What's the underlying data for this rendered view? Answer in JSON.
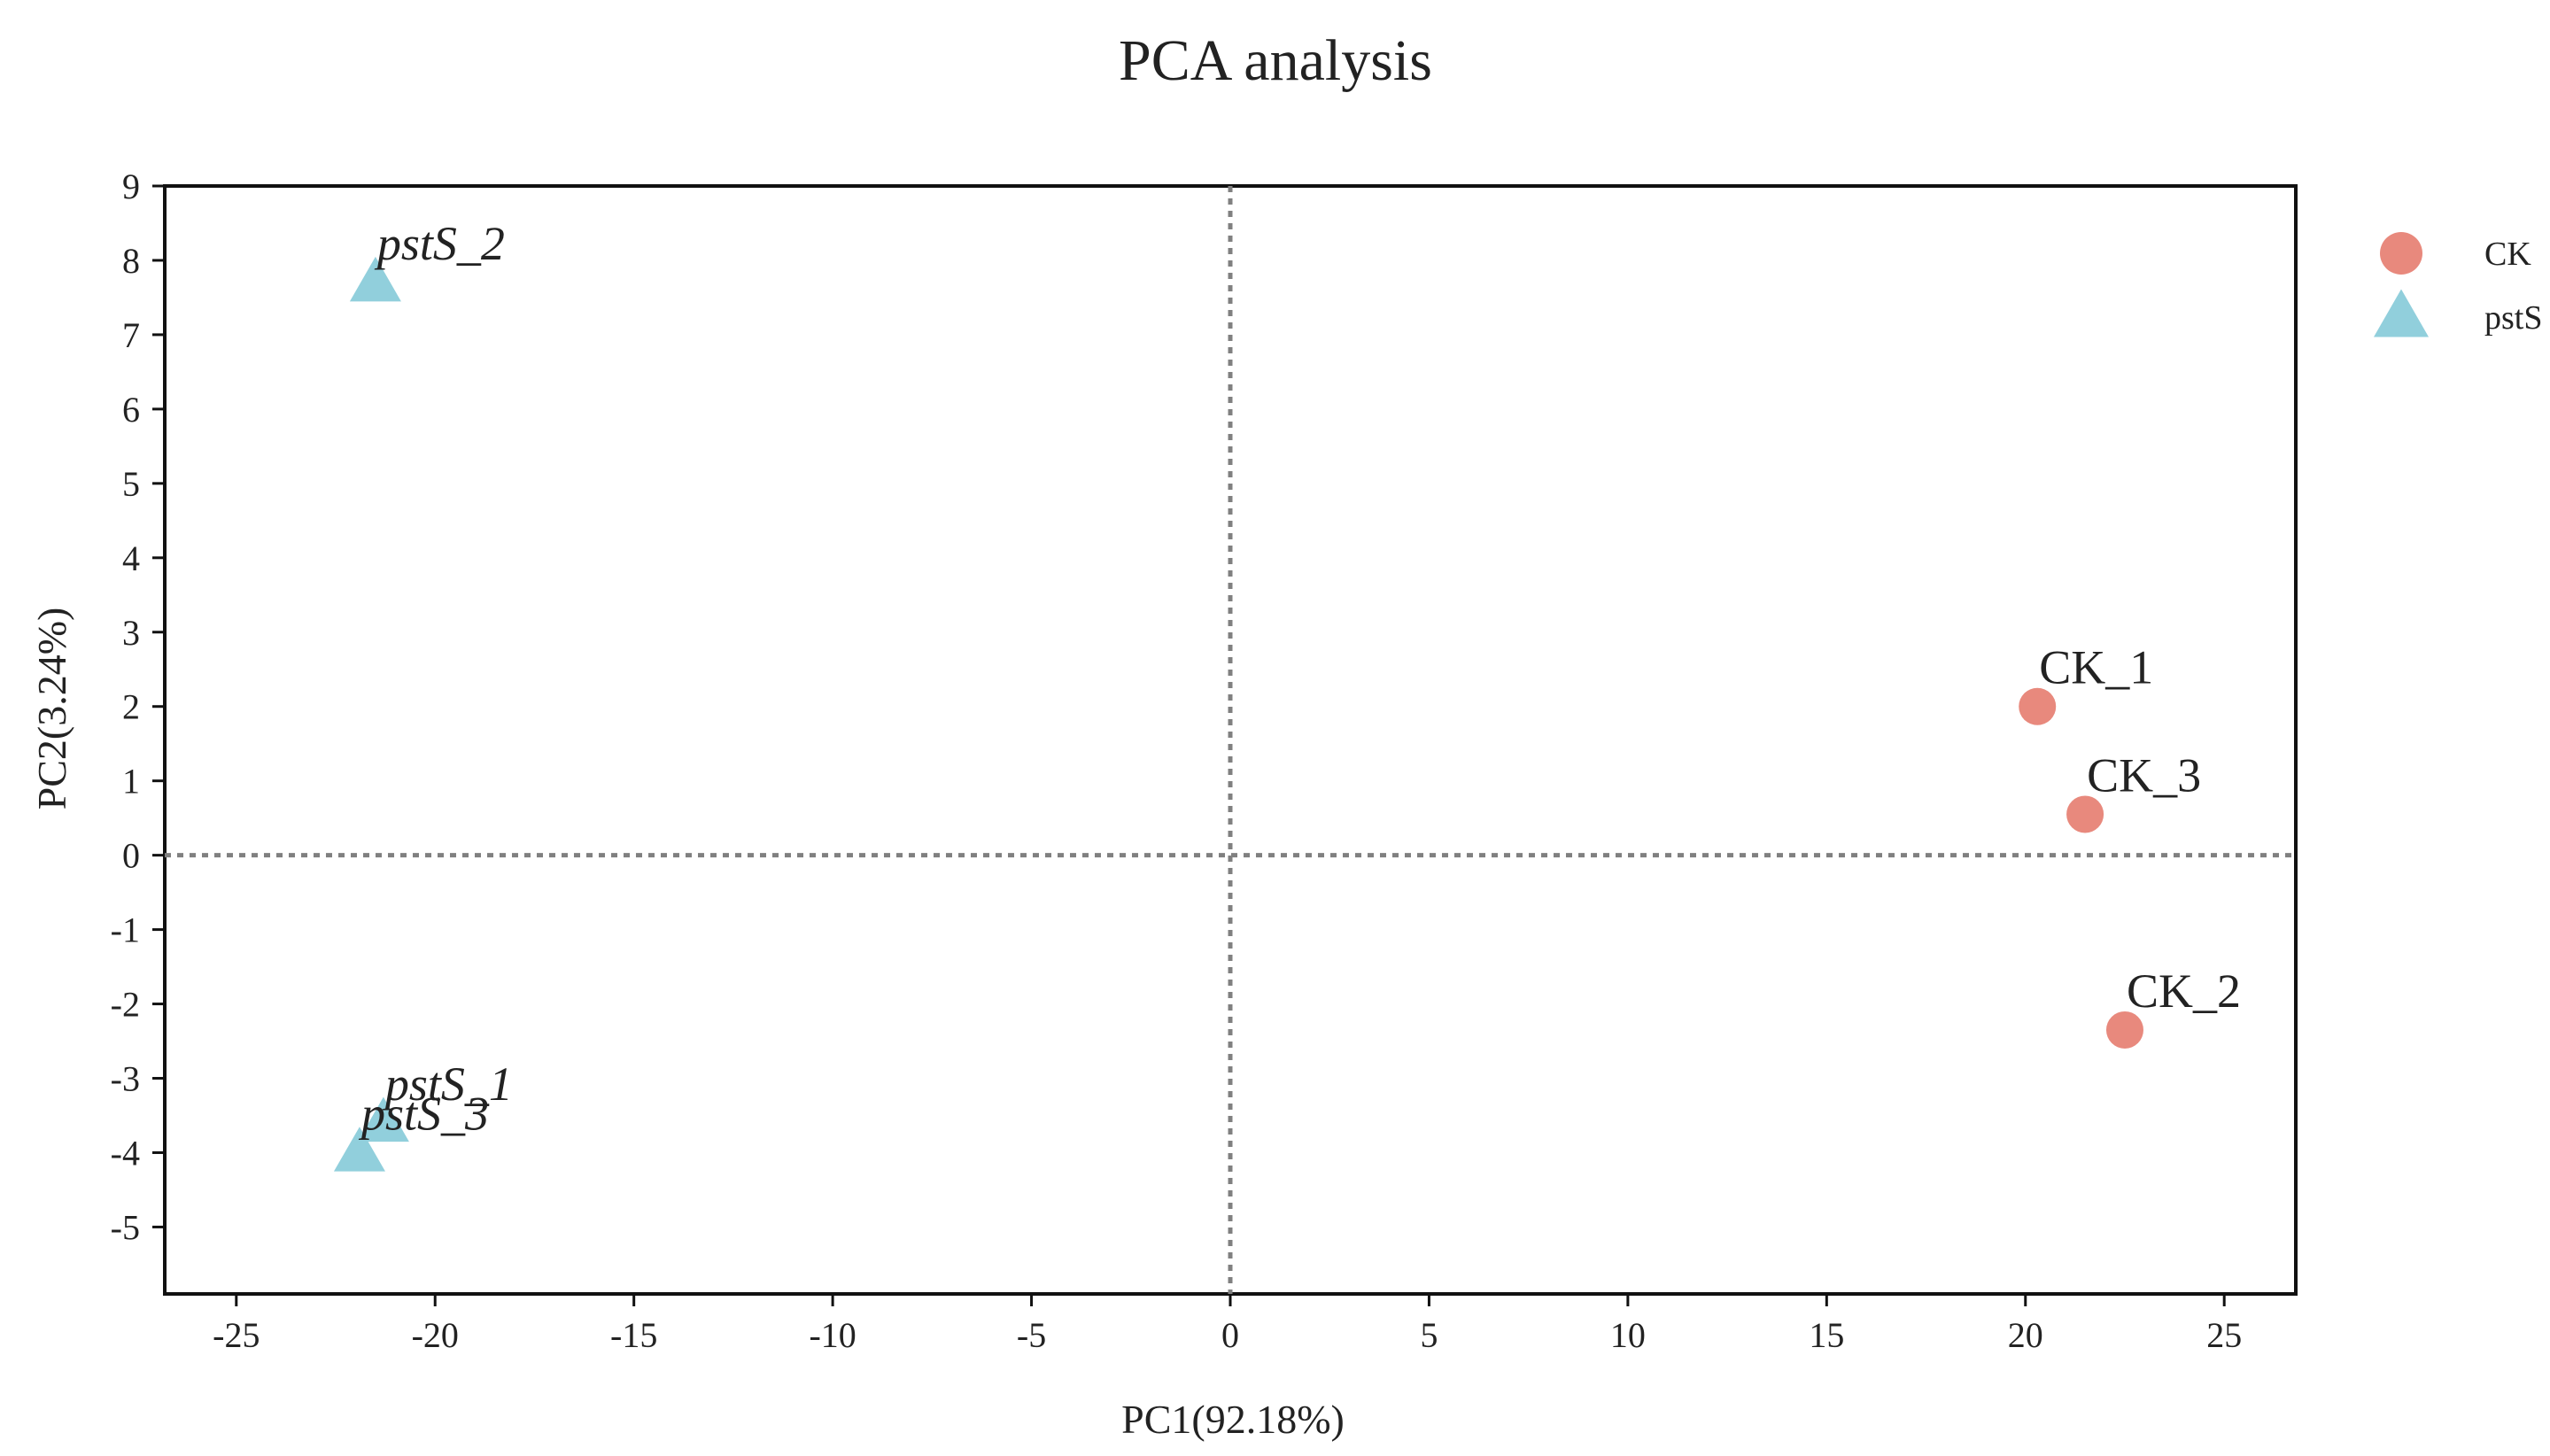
{
  "chart_data": {
    "type": "scatter",
    "title": "PCA analysis",
    "xlabel": "PC1(92.18%)",
    "ylabel": "PC2(3.24%)",
    "xlim": [
      -26.8,
      26.8
    ],
    "ylim": [
      -5.9,
      9
    ],
    "x_ticks": [
      -25,
      -20,
      -15,
      -10,
      -5,
      0,
      5,
      10,
      15,
      20,
      25
    ],
    "y_ticks": [
      9,
      8,
      7,
      6,
      5,
      4,
      3,
      2,
      1,
      0,
      -1,
      -2,
      -3,
      -4,
      -5
    ],
    "reference_lines": {
      "x": 0,
      "y": 0,
      "style": "dotted"
    },
    "grid": false,
    "legend_position": "right",
    "series": [
      {
        "name": "CK",
        "marker": "circle",
        "color": "#E8897D",
        "label_style": "normal",
        "points": [
          {
            "label": "CK_1",
            "x": 20.3,
            "y": 2.0
          },
          {
            "label": "CK_3",
            "x": 21.5,
            "y": 0.55
          },
          {
            "label": "CK_2",
            "x": 22.5,
            "y": -2.35
          }
        ]
      },
      {
        "name": "pstS",
        "marker": "triangle",
        "color": "#91CFDC",
        "label_style": "italic",
        "points": [
          {
            "label": "pstS_2",
            "x": -21.5,
            "y": 7.7
          },
          {
            "label": "pstS_1",
            "x": -21.3,
            "y": -3.6
          },
          {
            "label": "pstS_3",
            "x": -21.9,
            "y": -4.0
          }
        ]
      }
    ]
  }
}
